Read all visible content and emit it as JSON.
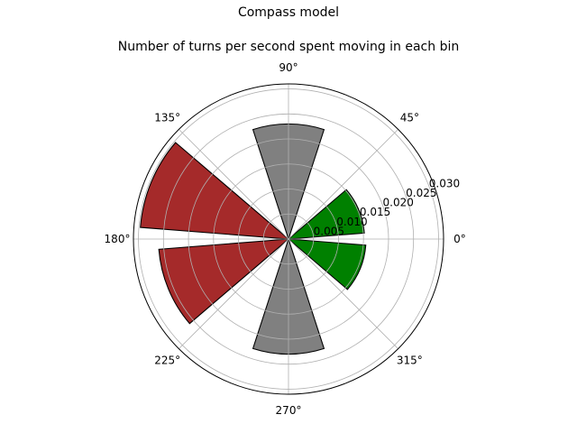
{
  "figure": {
    "suptitle": "Compass model"
  },
  "chart_data": {
    "type": "bar",
    "projection": "polar",
    "title": "Number of turns per second spent moving in each bin",
    "theta_tick_labels": [
      "0°",
      "45°",
      "90°",
      "135°",
      "180°",
      "225°",
      "270°",
      "315°"
    ],
    "theta_ticks_deg": [
      0,
      45,
      90,
      135,
      180,
      225,
      270,
      315
    ],
    "r_tick_labels": [
      "0.005",
      "0.010",
      "0.015",
      "0.020",
      "0.025",
      "0.030"
    ],
    "r_ticks": [
      0.005,
      0.01,
      0.015,
      0.02,
      0.025,
      0.03
    ],
    "rlim": [
      0,
      0.031
    ],
    "r_label_angle_deg": 22.5,
    "grid": true,
    "bar_width_deg": 36,
    "bars": [
      {
        "center_deg": 22.5,
        "value": 0.0152,
        "color": "#008000"
      },
      {
        "center_deg": 90,
        "value": 0.023,
        "color": "#808080"
      },
      {
        "center_deg": 157.5,
        "value": 0.0297,
        "color": "#a52a2a"
      },
      {
        "center_deg": 202.5,
        "value": 0.026,
        "color": "#a52a2a"
      },
      {
        "center_deg": 270,
        "value": 0.023,
        "color": "#808080"
      },
      {
        "center_deg": 337.5,
        "value": 0.0155,
        "color": "#008000"
      }
    ]
  }
}
